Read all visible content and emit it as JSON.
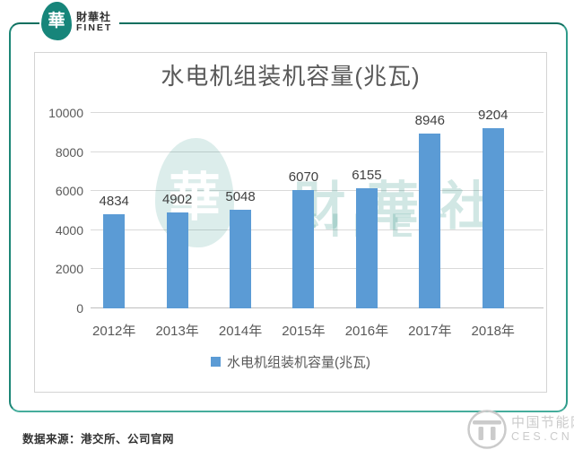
{
  "brand": {
    "logo_char": "華",
    "name_cn": "財華社",
    "name_en": "FINET"
  },
  "chart_data": {
    "type": "bar",
    "title": "水电机组装机容量(兆瓦)",
    "categories": [
      "2012年",
      "2013年",
      "2014年",
      "2015年",
      "2016年",
      "2017年",
      "2018年"
    ],
    "values": [
      4834,
      4902,
      5048,
      6070,
      6155,
      8946,
      9204
    ],
    "series_name": "水电机组装机容量(兆瓦)",
    "ylim": [
      0,
      10000
    ],
    "ytick_values": [
      0,
      2000,
      4000,
      6000,
      8000,
      10000
    ],
    "grid": true,
    "legend_position": "bottom",
    "bar_color": "#5B9BD5"
  },
  "legend": {
    "label": "水电机组装机容量(兆瓦)"
  },
  "watermark_center": {
    "logo_char": "華",
    "text_cn": "財華社",
    "text_en": "FINET"
  },
  "footer": {
    "source": "数据来源：港交所、公司官网"
  },
  "watermark_bottom_right": {
    "site_cn": "中国节能网",
    "site_en": "CES.CN"
  },
  "colors": {
    "bar": "#5B9BD5",
    "grid": "#D9D9D9",
    "frame_teal": "#1C8676",
    "brand_teal": "#17857A",
    "axis_text": "#595959",
    "watermark_gray": "#CBCBCB"
  }
}
